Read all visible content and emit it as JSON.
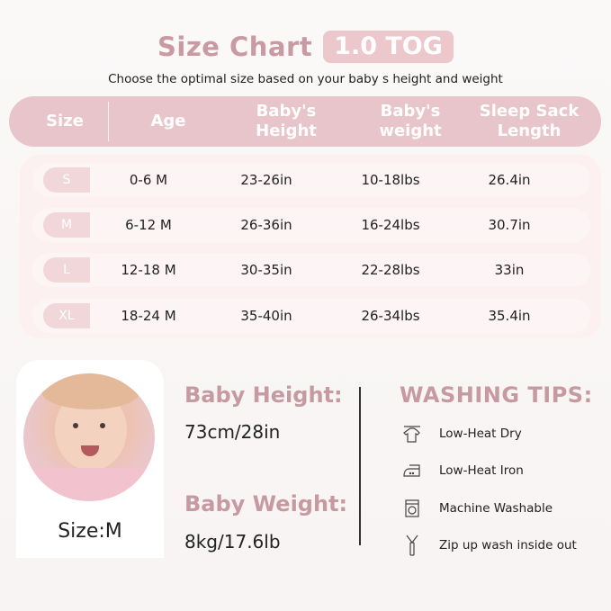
{
  "header": {
    "title": "Size Chart",
    "tog_badge": "1.0 TOG",
    "subtitle": "Choose the optimal size based on your baby  s height and weight"
  },
  "table": {
    "columns": [
      "Size",
      "Age",
      "Baby's\nHeight",
      "Baby's\nweight",
      "Sleep Sack\nLength"
    ],
    "rows": [
      {
        "size": "S",
        "age": "0-6 M",
        "height": "23-26in",
        "weight": "10-18lbs",
        "length": "26.4in"
      },
      {
        "size": "M",
        "age": "6-12 M",
        "height": "26-36in",
        "weight": "16-24lbs",
        "length": "30.7in"
      },
      {
        "size": "L",
        "age": "12-18 M",
        "height": "30-35in",
        "weight": "22-28lbs",
        "length": "33in"
      },
      {
        "size": "XL",
        "age": "18-24 M",
        "height": "35-40in",
        "weight": "26-34lbs",
        "length": "35.4in"
      }
    ]
  },
  "model": {
    "size_label": "Size:M",
    "height_label": "Baby Height:",
    "height_value": "73cm/28in",
    "weight_label": "Baby Weight:",
    "weight_value": "8kg/17.6lb"
  },
  "washing": {
    "title": "WASHING TIPS:",
    "items": [
      {
        "icon": "hanging-shirt-icon",
        "label": "Low-Heat Dry"
      },
      {
        "icon": "iron-icon",
        "label": "Low-Heat Iron"
      },
      {
        "icon": "washing-machine-icon",
        "label": "Machine Washable"
      },
      {
        "icon": "zipper-icon",
        "label": "Zip up wash inside out"
      }
    ]
  },
  "colors": {
    "accent": "#c99aa1",
    "header_bar": "#e8c5ca",
    "table_bg": "#fcf0f1"
  }
}
